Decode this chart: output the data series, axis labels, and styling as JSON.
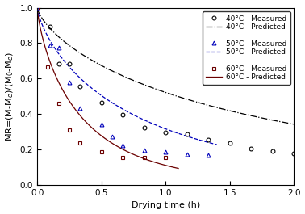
{
  "xlabel": "Drying time (h)",
  "ylabel": "MR=(M-M$_e$)/(M$_0$-M$_e$)",
  "xlim": [
    0,
    2.0
  ],
  "ylim": [
    0.0,
    1.0
  ],
  "xticks": [
    0.0,
    0.5,
    1.0,
    1.5,
    2.0
  ],
  "yticks": [
    0.0,
    0.2,
    0.4,
    0.6,
    0.8,
    1.0
  ],
  "measured_40": {
    "x": [
      0.0,
      0.1,
      0.167,
      0.25,
      0.333,
      0.5,
      0.667,
      0.833,
      1.0,
      1.167,
      1.333,
      1.5,
      1.667,
      1.833,
      2.0
    ],
    "y": [
      1.0,
      0.895,
      0.685,
      0.685,
      0.555,
      0.465,
      0.395,
      0.325,
      0.295,
      0.285,
      0.255,
      0.235,
      0.205,
      0.19,
      0.18
    ]
  },
  "predicted_40_k": 0.65,
  "predicted_40_n": 0.72,
  "measured_50": {
    "x": [
      0.0,
      0.1,
      0.167,
      0.25,
      0.333,
      0.5,
      0.583,
      0.667,
      0.833,
      1.0,
      1.167,
      1.333
    ],
    "y": [
      1.0,
      0.79,
      0.775,
      0.58,
      0.435,
      0.34,
      0.275,
      0.225,
      0.195,
      0.185,
      0.175,
      0.168
    ]
  },
  "predicted_50_k": 1.15,
  "predicted_50_n": 0.75,
  "measured_60": {
    "x": [
      0.0,
      0.083,
      0.167,
      0.25,
      0.333,
      0.5,
      0.667,
      0.833,
      1.0
    ],
    "y": [
      1.0,
      0.665,
      0.46,
      0.31,
      0.235,
      0.185,
      0.155,
      0.155,
      0.155
    ]
  },
  "predicted_60_k": 2.2,
  "predicted_60_n": 0.78,
  "color_40": "#000000",
  "linestyle_40": "-.",
  "color_50": "#0000bb",
  "linestyle_50": "--",
  "color_60": "#6b0000",
  "linestyle_60": "-",
  "legend_fontsize": 6.5,
  "axis_fontsize": 8,
  "tick_fontsize": 7.5
}
